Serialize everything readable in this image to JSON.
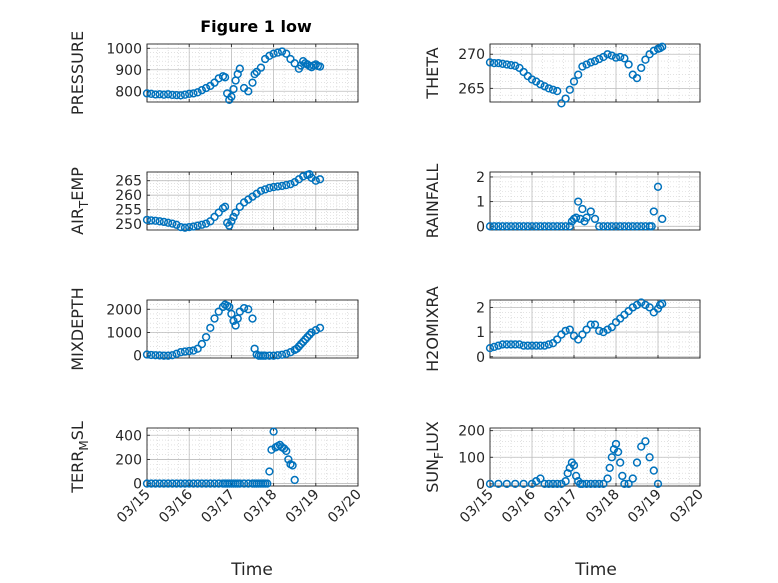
{
  "figure_title": "Figure 1 low",
  "chart_data": [
    {
      "type": "scatter",
      "ylabel": "PRESSURE",
      "title": "Figure 1 low",
      "xlim": [
        "03/15",
        "03/20"
      ],
      "ylim": [
        750,
        1020
      ],
      "yticks": [
        800,
        900,
        1000
      ],
      "grid": true,
      "marker": "circle-open",
      "color": "#0072BD",
      "x": [
        0,
        0.1,
        0.2,
        0.3,
        0.4,
        0.5,
        0.6,
        0.7,
        0.8,
        0.9,
        1.0,
        1.1,
        1.2,
        1.3,
        1.4,
        1.5,
        1.6,
        1.7,
        1.8,
        1.85,
        1.9,
        1.95,
        2.0,
        2.05,
        2.1,
        2.15,
        2.2,
        2.3,
        2.4,
        2.5,
        2.55,
        2.6,
        2.7,
        2.8,
        2.9,
        3.0,
        3.1,
        3.2,
        3.3,
        3.4,
        3.5,
        3.6,
        3.65,
        3.7,
        3.75,
        3.8,
        3.85,
        3.9,
        3.95,
        4.0,
        4.05,
        4.1
      ],
      "y": [
        790,
        788,
        785,
        786,
        784,
        786,
        783,
        782,
        781,
        784,
        788,
        790,
        795,
        805,
        815,
        825,
        840,
        860,
        870,
        865,
        790,
        760,
        775,
        810,
        850,
        880,
        905,
        815,
        800,
        840,
        880,
        890,
        910,
        950,
        965,
        975,
        980,
        985,
        975,
        950,
        930,
        905,
        920,
        940,
        930,
        925,
        918,
        912,
        920,
        925,
        918,
        915
      ]
    },
    {
      "type": "scatter",
      "ylabel": "THETA",
      "xlim": [
        "03/15",
        "03/20"
      ],
      "ylim": [
        263,
        271.5
      ],
      "yticks": [
        265,
        270
      ],
      "grid": true,
      "marker": "circle-open",
      "color": "#0072BD",
      "x": [
        0,
        0.1,
        0.2,
        0.3,
        0.4,
        0.5,
        0.6,
        0.7,
        0.8,
        0.9,
        1.0,
        1.1,
        1.2,
        1.3,
        1.4,
        1.5,
        1.6,
        1.7,
        1.8,
        1.9,
        2.0,
        2.1,
        2.2,
        2.3,
        2.4,
        2.5,
        2.6,
        2.7,
        2.8,
        2.9,
        3.0,
        3.1,
        3.2,
        3.3,
        3.4,
        3.5,
        3.6,
        3.7,
        3.8,
        3.9,
        4.0,
        4.05,
        4.1
      ],
      "y": [
        268.8,
        268.7,
        268.7,
        268.6,
        268.5,
        268.4,
        268.3,
        268.0,
        267.4,
        266.8,
        266.3,
        266.0,
        265.6,
        265.3,
        265.0,
        264.8,
        264.6,
        262.8,
        263.5,
        264.8,
        266.0,
        267.0,
        268.2,
        268.5,
        268.8,
        269.0,
        269.3,
        269.6,
        270.0,
        269.8,
        269.5,
        269.6,
        269.4,
        268.5,
        267.0,
        266.5,
        268.0,
        269.2,
        270.0,
        270.5,
        270.8,
        270.9,
        271.1
      ]
    },
    {
      "type": "scatter",
      "ylabel": "AIR_TEMP",
      "ylabel_base": "AIR",
      "ylabel_sub": "T",
      "ylabel_rest": "EMP",
      "xlim": [
        "03/15",
        "03/20"
      ],
      "ylim": [
        248,
        268
      ],
      "yticks": [
        250,
        255,
        260,
        265
      ],
      "grid": true,
      "marker": "circle-open",
      "color": "#0072BD",
      "x": [
        0,
        0.1,
        0.2,
        0.3,
        0.4,
        0.5,
        0.6,
        0.7,
        0.8,
        0.9,
        1.0,
        1.1,
        1.2,
        1.3,
        1.4,
        1.5,
        1.6,
        1.7,
        1.8,
        1.85,
        1.9,
        1.95,
        2.0,
        2.05,
        2.1,
        2.2,
        2.3,
        2.4,
        2.5,
        2.6,
        2.7,
        2.8,
        2.9,
        3.0,
        3.1,
        3.2,
        3.3,
        3.4,
        3.5,
        3.6,
        3.7,
        3.8,
        3.85,
        3.9,
        4.0,
        4.1
      ],
      "y": [
        251.5,
        251.3,
        251.2,
        251.0,
        250.8,
        250.5,
        250.2,
        249.8,
        249.0,
        248.8,
        249.0,
        249.2,
        249.5,
        249.8,
        250.2,
        251.0,
        252.5,
        254.0,
        255.5,
        256.0,
        250.5,
        249.5,
        251.0,
        252.5,
        254.0,
        256.0,
        257.5,
        258.5,
        259.5,
        260.5,
        261.5,
        262.0,
        262.5,
        262.8,
        263.0,
        263.2,
        263.5,
        263.8,
        264.5,
        265.5,
        266.5,
        267.0,
        267.2,
        266.0,
        265.0,
        265.5
      ]
    },
    {
      "type": "scatter",
      "ylabel": "RAINFALL",
      "xlim": [
        "03/15",
        "03/20"
      ],
      "ylim": [
        -0.15,
        2.2
      ],
      "yticks": [
        0,
        1,
        2
      ],
      "grid": true,
      "marker": "circle-open",
      "color": "#0072BD",
      "x": [
        0,
        0.1,
        0.2,
        0.3,
        0.4,
        0.5,
        0.6,
        0.7,
        0.8,
        0.9,
        1.0,
        1.1,
        1.2,
        1.3,
        1.4,
        1.5,
        1.6,
        1.7,
        1.8,
        1.9,
        1.95,
        2.0,
        2.05,
        2.1,
        2.15,
        2.2,
        2.25,
        2.3,
        2.4,
        2.5,
        2.6,
        2.7,
        2.8,
        2.9,
        3.0,
        3.1,
        3.2,
        3.3,
        3.4,
        3.5,
        3.6,
        3.7,
        3.8,
        3.85,
        3.9,
        4.0,
        4.1
      ],
      "y": [
        0,
        0,
        0,
        0,
        0,
        0,
        0,
        0,
        0,
        0,
        0,
        0,
        0,
        0,
        0,
        0,
        0,
        0,
        0,
        0,
        0.2,
        0.3,
        0.35,
        1.0,
        0.3,
        0.7,
        0.2,
        0.35,
        0.6,
        0.3,
        0,
        0,
        0,
        0,
        0,
        0,
        0,
        0,
        0,
        0,
        0,
        0,
        0,
        0,
        0.6,
        1.6,
        0.3
      ]
    },
    {
      "type": "scatter",
      "ylabel": "MIXDEPTH",
      "xlim": [
        "03/15",
        "03/20"
      ],
      "ylim": [
        -100,
        2400
      ],
      "yticks": [
        0,
        1000,
        2000
      ],
      "grid": true,
      "marker": "circle-open",
      "color": "#0072BD",
      "x": [
        0,
        0.1,
        0.2,
        0.3,
        0.4,
        0.5,
        0.6,
        0.7,
        0.8,
        0.9,
        1.0,
        1.1,
        1.2,
        1.3,
        1.4,
        1.5,
        1.6,
        1.7,
        1.8,
        1.85,
        1.9,
        1.95,
        2.0,
        2.05,
        2.1,
        2.15,
        2.2,
        2.3,
        2.4,
        2.5,
        2.55,
        2.6,
        2.65,
        2.7,
        2.75,
        2.8,
        2.9,
        3.0,
        3.1,
        3.2,
        3.3,
        3.4,
        3.5,
        3.55,
        3.6,
        3.65,
        3.7,
        3.75,
        3.8,
        3.85,
        3.9,
        4.0,
        4.1
      ],
      "y": [
        50,
        30,
        20,
        10,
        0,
        0,
        20,
        80,
        150,
        180,
        200,
        220,
        300,
        500,
        800,
        1200,
        1600,
        1900,
        2100,
        2200,
        2150,
        2100,
        1800,
        1500,
        1300,
        1600,
        1900,
        2050,
        2000,
        1600,
        300,
        50,
        0,
        0,
        0,
        0,
        0,
        0,
        20,
        40,
        80,
        150,
        250,
        300,
        400,
        500,
        600,
        700,
        800,
        900,
        1000,
        1100,
        1200
      ]
    },
    {
      "type": "scatter",
      "ylabel": "H2OMIXRA",
      "xlim": [
        "03/15",
        "03/20"
      ],
      "ylim": [
        -0.05,
        2.3
      ],
      "yticks": [
        0,
        1,
        2
      ],
      "grid": true,
      "marker": "circle-open",
      "color": "#0072BD",
      "x": [
        0,
        0.1,
        0.2,
        0.3,
        0.4,
        0.5,
        0.6,
        0.7,
        0.8,
        0.9,
        1.0,
        1.1,
        1.2,
        1.3,
        1.4,
        1.5,
        1.6,
        1.7,
        1.8,
        1.9,
        2.0,
        2.1,
        2.2,
        2.3,
        2.4,
        2.5,
        2.6,
        2.7,
        2.8,
        2.9,
        3.0,
        3.1,
        3.2,
        3.3,
        3.4,
        3.5,
        3.6,
        3.7,
        3.8,
        3.9,
        4.0,
        4.05,
        4.1
      ],
      "y": [
        0.35,
        0.4,
        0.45,
        0.5,
        0.5,
        0.5,
        0.5,
        0.5,
        0.45,
        0.45,
        0.45,
        0.45,
        0.45,
        0.45,
        0.5,
        0.55,
        0.7,
        0.9,
        1.05,
        1.1,
        0.85,
        0.7,
        0.9,
        1.1,
        1.3,
        1.3,
        1.05,
        1.0,
        1.1,
        1.2,
        1.4,
        1.55,
        1.7,
        1.85,
        2.0,
        2.1,
        2.2,
        2.1,
        2.0,
        1.8,
        1.95,
        2.1,
        2.15
      ]
    },
    {
      "type": "scatter",
      "ylabel": "TERR_MSL",
      "ylabel_base": "TERR",
      "ylabel_sub": "M",
      "ylabel_rest": "SL",
      "xlim": [
        "03/15",
        "03/20"
      ],
      "ylim": [
        -20,
        460
      ],
      "yticks": [
        0,
        200,
        400
      ],
      "grid": true,
      "marker": "circle-open",
      "color": "#0072BD",
      "x": [
        0,
        0.1,
        0.2,
        0.3,
        0.4,
        0.5,
        0.6,
        0.7,
        0.8,
        0.9,
        1.0,
        1.1,
        1.2,
        1.3,
        1.4,
        1.5,
        1.6,
        1.7,
        1.8,
        1.85,
        1.9,
        1.95,
        2.0,
        2.05,
        2.1,
        2.15,
        2.2,
        2.3,
        2.4,
        2.5,
        2.55,
        2.6,
        2.65,
        2.7,
        2.75,
        2.8,
        2.85,
        2.9,
        2.95,
        3.0,
        3.05,
        3.1,
        3.15,
        3.2,
        3.25,
        3.3,
        3.35,
        3.4,
        3.45,
        3.5
      ],
      "y": [
        0,
        0,
        0,
        0,
        0,
        0,
        0,
        0,
        0,
        0,
        0,
        0,
        0,
        0,
        0,
        0,
        0,
        0,
        0,
        0,
        0,
        0,
        0,
        0,
        0,
        0,
        0,
        0,
        0,
        0,
        0,
        0,
        0,
        0,
        0,
        0,
        0,
        100,
        280,
        430,
        300,
        310,
        320,
        300,
        290,
        270,
        200,
        160,
        150,
        30
      ]
    },
    {
      "type": "scatter",
      "ylabel": "SUN_FLUX",
      "ylabel_base": "SUN",
      "ylabel_sub": "F",
      "ylabel_rest": "LUX",
      "xlim": [
        "03/15",
        "03/20"
      ],
      "ylim": [
        -8,
        210
      ],
      "yticks": [
        0,
        100,
        200
      ],
      "grid": true,
      "marker": "circle-open",
      "color": "#0072BD",
      "x": [
        0,
        0.2,
        0.4,
        0.6,
        0.8,
        1.0,
        1.1,
        1.2,
        1.3,
        1.4,
        1.5,
        1.6,
        1.7,
        1.8,
        1.85,
        1.9,
        1.95,
        2.0,
        2.05,
        2.1,
        2.15,
        2.2,
        2.3,
        2.4,
        2.5,
        2.6,
        2.7,
        2.8,
        2.85,
        2.9,
        2.95,
        3.0,
        3.05,
        3.1,
        3.15,
        3.2,
        3.3,
        3.4,
        3.5,
        3.6,
        3.7,
        3.8,
        3.9,
        4.0
      ],
      "y": [
        0,
        0,
        0,
        0,
        0,
        0,
        10,
        20,
        0,
        0,
        0,
        0,
        0,
        10,
        40,
        60,
        80,
        70,
        30,
        10,
        0,
        0,
        0,
        0,
        0,
        0,
        0,
        20,
        60,
        100,
        130,
        150,
        120,
        80,
        30,
        0,
        0,
        20,
        80,
        140,
        160,
        100,
        50,
        0
      ]
    }
  ],
  "xtick_labels": [
    "03/15",
    "03/16",
    "03/17",
    "03/18",
    "03/19",
    "03/20"
  ],
  "xlabel": "Time"
}
